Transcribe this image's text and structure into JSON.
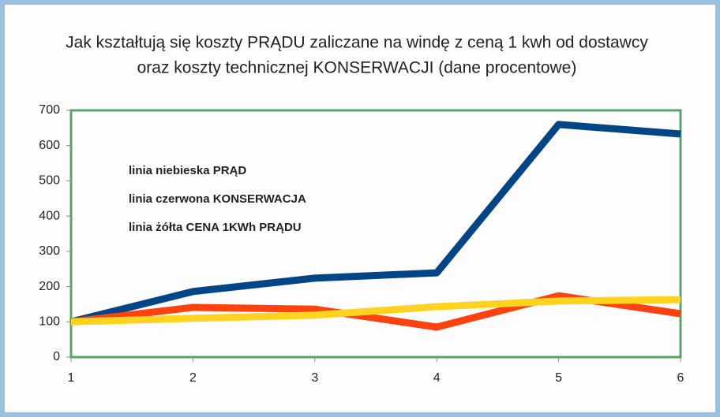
{
  "chart_data": {
    "type": "line",
    "title": [
      "Jak kształtują się koszty PRĄDU zaliczane na windę z ceną 1 kwh od dostawcy",
      "oraz koszty technicznej KONSERWACJI (dane procentowe)"
    ],
    "annotations": [
      "linia niebieska PRĄD",
      "linia czerwona KONSERWACJA",
      "linia żółta CENA 1KWh PRĄDU"
    ],
    "x": [
      1,
      2,
      3,
      4,
      5,
      6
    ],
    "xlim": [
      1,
      6
    ],
    "xticks": [
      1,
      2,
      3,
      4,
      5,
      6
    ],
    "ylim": [
      0,
      700
    ],
    "yticks": [
      0,
      100,
      200,
      300,
      400,
      500,
      600,
      700
    ],
    "grid": false,
    "series": [
      {
        "color": "#004586",
        "values": [
          100,
          186,
          224,
          239,
          660,
          633
        ]
      },
      {
        "color": "#ff420e",
        "values": [
          100,
          141,
          136,
          85,
          174,
          123
        ]
      },
      {
        "color": "#ffd320",
        "values": [
          100,
          110,
          119,
          143,
          159,
          163
        ]
      }
    ]
  }
}
